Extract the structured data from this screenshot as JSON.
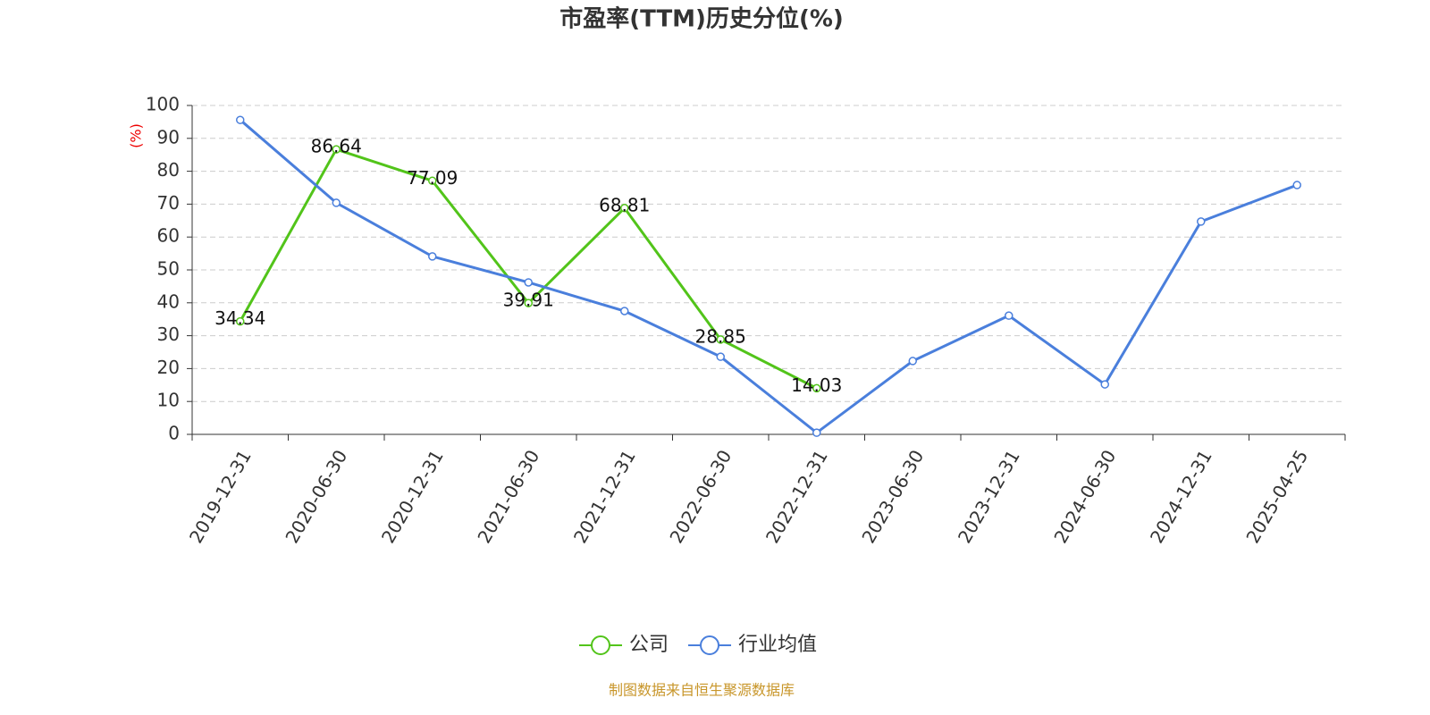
{
  "chart_data": {
    "type": "line",
    "title": "市盈率(TTM)历史分位(%)",
    "y_axis_label": "(%)",
    "categories": [
      "2019-12-31",
      "2020-06-30",
      "2020-12-31",
      "2021-06-30",
      "2021-12-31",
      "2022-06-30",
      "2022-12-31",
      "2023-06-30",
      "2023-12-31",
      "2024-06-30",
      "2024-12-31",
      "2025-04-25"
    ],
    "series": [
      {
        "name": "公司",
        "color": "#52c41a",
        "values": [
          34.34,
          86.64,
          77.09,
          39.91,
          68.81,
          28.85,
          14.03,
          null,
          null,
          null,
          null,
          null
        ]
      },
      {
        "name": "行业均值",
        "color": "#4a7fdc",
        "values": [
          95.6,
          70.4,
          54.1,
          46.2,
          37.5,
          23.6,
          0.5,
          22.3,
          36.1,
          15.2,
          64.7,
          75.8
        ]
      }
    ],
    "ylim": [
      0,
      100
    ],
    "yticks": [
      0,
      10,
      20,
      30,
      40,
      50,
      60,
      70,
      80,
      90,
      100
    ],
    "grid": true,
    "legend": "bottom",
    "source": "制图数据来自恒生聚源数据库"
  }
}
